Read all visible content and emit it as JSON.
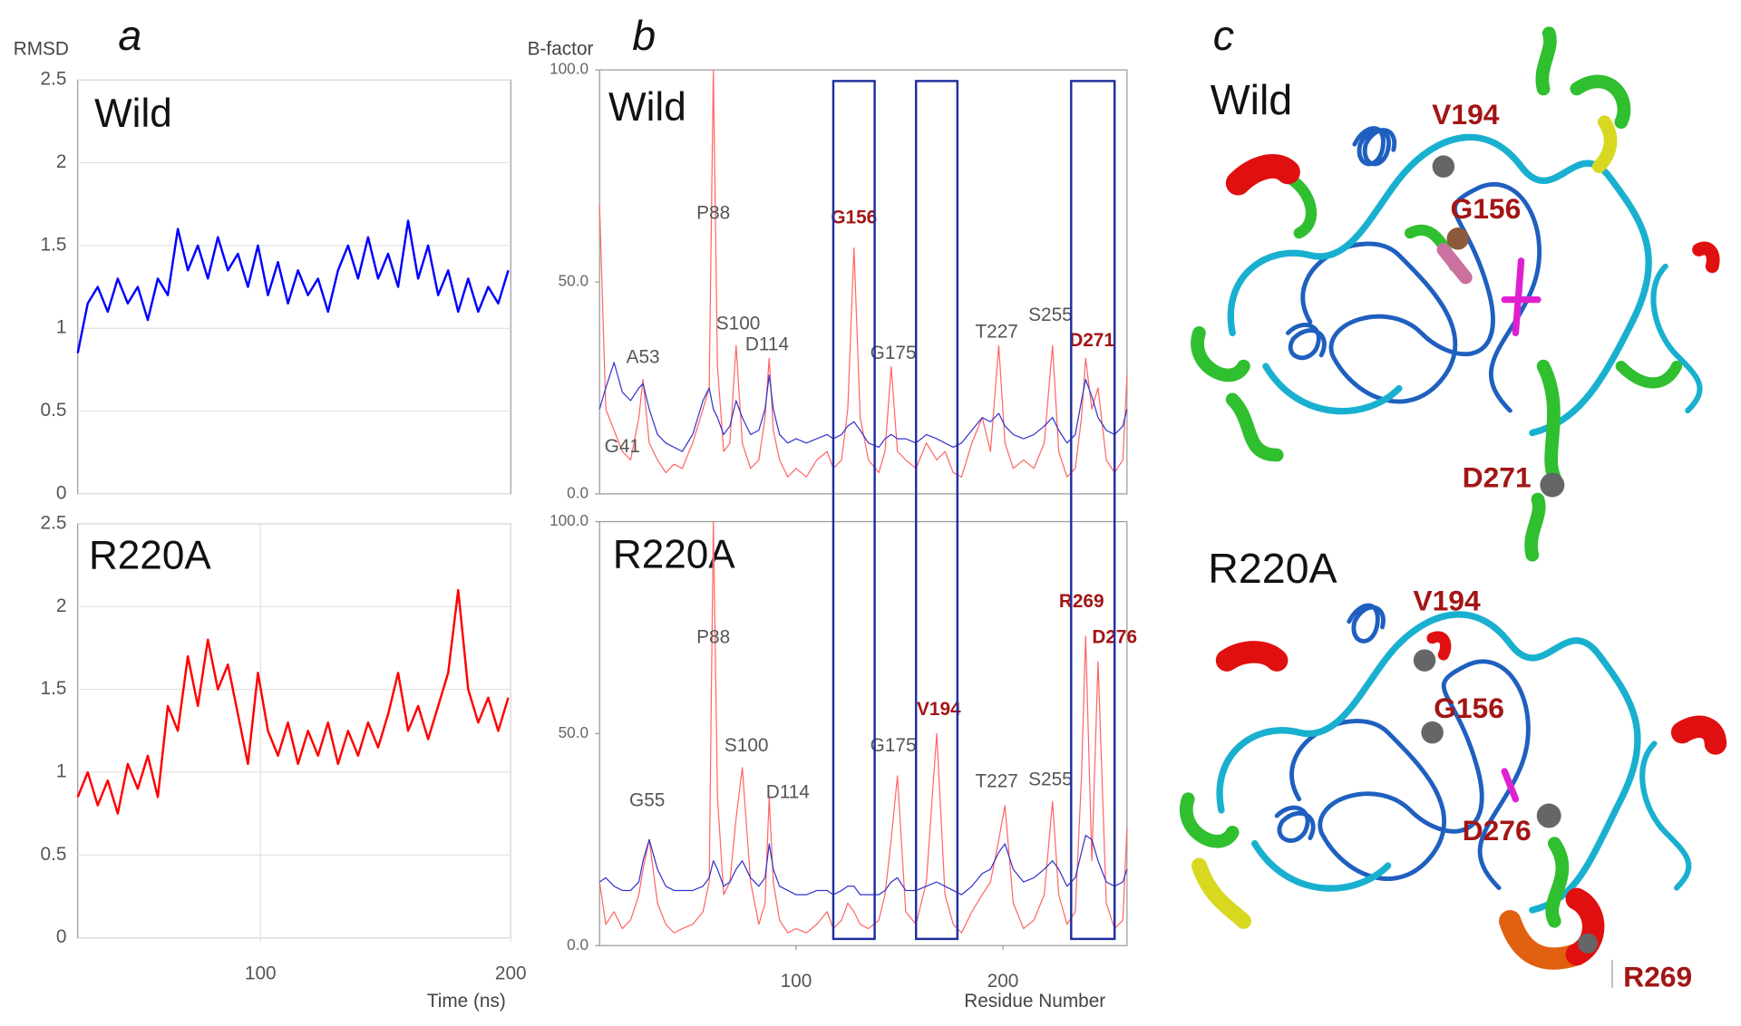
{
  "panel_labels": [
    "a",
    "b",
    "c"
  ],
  "chart_data": [
    {
      "type": "line",
      "title": "Wild",
      "ylabel": "RMSD",
      "ylim": [
        0,
        2.5
      ],
      "yticks": [
        0,
        0.5,
        1,
        1.5,
        2,
        2.5
      ],
      "xlim": [
        27,
        200
      ],
      "grid": true,
      "x": [
        27,
        31,
        35,
        39,
        43,
        47,
        51,
        55,
        59,
        63,
        67,
        71,
        75,
        79,
        83,
        87,
        91,
        95,
        99,
        103,
        107,
        111,
        115,
        119,
        123,
        127,
        131,
        135,
        139,
        143,
        147,
        151,
        155,
        159,
        163,
        167,
        171,
        175,
        179,
        183,
        187,
        191,
        195,
        199
      ],
      "series": [
        {
          "color": "#0000ff",
          "values": [
            0.85,
            1.15,
            1.25,
            1.1,
            1.3,
            1.15,
            1.25,
            1.05,
            1.3,
            1.2,
            1.6,
            1.35,
            1.5,
            1.3,
            1.55,
            1.35,
            1.45,
            1.25,
            1.5,
            1.2,
            1.4,
            1.15,
            1.35,
            1.2,
            1.3,
            1.1,
            1.35,
            1.5,
            1.3,
            1.55,
            1.3,
            1.45,
            1.25,
            1.65,
            1.3,
            1.5,
            1.2,
            1.35,
            1.1,
            1.3,
            1.1,
            1.25,
            1.15,
            1.35
          ]
        }
      ]
    },
    {
      "type": "line",
      "title": "R220A",
      "xlabel": "Time (ns)",
      "ylim": [
        0,
        2.5
      ],
      "yticks": [
        0,
        0.5,
        1,
        1.5,
        2,
        2.5
      ],
      "xlim": [
        27,
        200
      ],
      "xticks": [
        100,
        200
      ],
      "grid": true,
      "x": [
        27,
        31,
        35,
        39,
        43,
        47,
        51,
        55,
        59,
        63,
        67,
        71,
        75,
        79,
        83,
        87,
        91,
        95,
        99,
        103,
        107,
        111,
        115,
        119,
        123,
        127,
        131,
        135,
        139,
        143,
        147,
        151,
        155,
        159,
        163,
        167,
        171,
        175,
        179,
        183,
        187,
        191,
        195,
        199
      ],
      "series": [
        {
          "color": "#ff0000",
          "values": [
            0.85,
            1.0,
            0.8,
            0.95,
            0.75,
            1.05,
            0.9,
            1.1,
            0.85,
            1.4,
            1.25,
            1.7,
            1.4,
            1.8,
            1.5,
            1.65,
            1.35,
            1.05,
            1.6,
            1.25,
            1.1,
            1.3,
            1.05,
            1.25,
            1.1,
            1.3,
            1.05,
            1.25,
            1.1,
            1.3,
            1.15,
            1.35,
            1.6,
            1.25,
            1.4,
            1.2,
            1.4,
            1.6,
            2.1,
            1.5,
            1.3,
            1.45,
            1.25,
            1.45
          ]
        }
      ]
    },
    {
      "type": "line",
      "title": "Wild",
      "ylabel": "B-factor",
      "ylim": [
        0,
        100
      ],
      "yticks": [
        {
          "value": 0,
          "label": "0.0"
        },
        {
          "value": 50,
          "label": "50.0"
        },
        {
          "value": 100,
          "label": "100.0"
        }
      ],
      "xlim": [
        5,
        260
      ],
      "grid": false,
      "x": [
        5,
        8,
        12,
        16,
        20,
        24,
        26,
        29,
        33,
        37,
        41,
        45,
        50,
        55,
        58,
        60,
        62,
        65,
        68,
        71,
        74,
        78,
        82,
        85,
        87,
        89,
        92,
        96,
        100,
        105,
        110,
        115,
        118,
        122,
        125,
        128,
        131,
        135,
        140,
        143,
        146,
        149,
        153,
        158,
        163,
        168,
        172,
        176,
        180,
        185,
        190,
        194,
        198,
        201,
        205,
        210,
        215,
        220,
        224,
        227,
        231,
        235,
        238,
        240,
        243,
        246,
        250,
        254,
        258,
        260
      ],
      "series": [
        {
          "color": "#ff6666",
          "values": [
            68,
            20,
            15,
            10,
            8,
            18,
            27,
            12,
            8,
            5,
            7,
            6,
            12,
            20,
            25,
            100,
            30,
            10,
            12,
            35,
            12,
            6,
            8,
            18,
            32,
            15,
            8,
            4,
            6,
            4,
            8,
            10,
            6,
            8,
            20,
            58,
            18,
            8,
            5,
            10,
            30,
            10,
            8,
            6,
            12,
            8,
            10,
            5,
            4,
            12,
            18,
            10,
            35,
            12,
            6,
            8,
            6,
            12,
            35,
            10,
            4,
            6,
            18,
            32,
            20,
            25,
            8,
            5,
            8,
            28
          ]
        },
        {
          "color": "#3333cc",
          "values": [
            20,
            25,
            31,
            24,
            22,
            25,
            26,
            20,
            14,
            12,
            11,
            10,
            14,
            22,
            25,
            20,
            18,
            14,
            16,
            22,
            18,
            14,
            15,
            20,
            28,
            20,
            14,
            12,
            13,
            12,
            13,
            14,
            13,
            14,
            16,
            17,
            15,
            12,
            11,
            13,
            14,
            13,
            13,
            12,
            14,
            13,
            12,
            11,
            12,
            15,
            18,
            17,
            19,
            16,
            14,
            13,
            14,
            16,
            18,
            15,
            12,
            14,
            22,
            27,
            23,
            18,
            15,
            14,
            16,
            20
          ]
        }
      ],
      "annotations": [
        {
          "text": "A53",
          "x": 26,
          "y": 32,
          "color": "#555555"
        },
        {
          "text": "G41",
          "x": 16,
          "y": 11,
          "color": "#555555"
        },
        {
          "text": "P88",
          "x": 60,
          "y": 66,
          "color": "#555555"
        },
        {
          "text": "S100",
          "x": 72,
          "y": 40,
          "color": "#555555"
        },
        {
          "text": "D114",
          "x": 86,
          "y": 35,
          "color": "#555555"
        },
        {
          "text": "G156",
          "x": 128,
          "y": 65,
          "color": "#a31515"
        },
        {
          "text": "G175",
          "x": 147,
          "y": 33,
          "color": "#555555"
        },
        {
          "text": "T227",
          "x": 197,
          "y": 38,
          "color": "#555555"
        },
        {
          "text": "S255",
          "x": 223,
          "y": 42,
          "color": "#555555"
        },
        {
          "text": "D271",
          "x": 243,
          "y": 36,
          "color": "#a31515"
        }
      ]
    },
    {
      "type": "line",
      "title": "R220A",
      "xlabel": "Residue Number",
      "ylim": [
        0,
        100
      ],
      "yticks": [
        {
          "value": 0,
          "label": "0.0"
        },
        {
          "value": 50,
          "label": "50.0"
        },
        {
          "value": 100,
          "label": "100.0"
        }
      ],
      "xlim": [
        5,
        260
      ],
      "xticks": [
        100,
        200
      ],
      "grid": false,
      "x": [
        5,
        8,
        12,
        16,
        20,
        24,
        26,
        29,
        33,
        37,
        41,
        45,
        50,
        55,
        58,
        60,
        62,
        65,
        68,
        71,
        74,
        78,
        82,
        85,
        87,
        89,
        92,
        96,
        100,
        105,
        110,
        115,
        118,
        122,
        125,
        128,
        131,
        135,
        140,
        143,
        146,
        149,
        153,
        158,
        163,
        168,
        172,
        176,
        180,
        185,
        190,
        194,
        198,
        201,
        205,
        210,
        215,
        220,
        224,
        227,
        231,
        235,
        238,
        240,
        243,
        246,
        250,
        254,
        258,
        260
      ],
      "series": [
        {
          "color": "#ff6666",
          "values": [
            15,
            5,
            8,
            4,
            6,
            12,
            18,
            25,
            10,
            5,
            3,
            4,
            5,
            8,
            15,
            100,
            35,
            12,
            15,
            30,
            42,
            15,
            5,
            10,
            35,
            15,
            6,
            3,
            4,
            3,
            5,
            8,
            4,
            6,
            10,
            8,
            5,
            4,
            6,
            12,
            25,
            40,
            8,
            5,
            15,
            50,
            12,
            5,
            3,
            8,
            12,
            15,
            25,
            33,
            10,
            4,
            6,
            12,
            34,
            12,
            5,
            8,
            40,
            73,
            20,
            67,
            10,
            4,
            6,
            28
          ]
        },
        {
          "color": "#3333cc",
          "values": [
            15,
            16,
            14,
            13,
            13,
            15,
            20,
            25,
            18,
            14,
            13,
            13,
            13,
            14,
            16,
            20,
            18,
            14,
            15,
            18,
            20,
            16,
            14,
            16,
            24,
            18,
            14,
            13,
            12,
            12,
            13,
            13,
            12,
            13,
            14,
            14,
            12,
            12,
            12,
            13,
            15,
            16,
            13,
            13,
            14,
            15,
            14,
            13,
            12,
            14,
            17,
            18,
            22,
            24,
            18,
            15,
            16,
            18,
            20,
            18,
            14,
            16,
            22,
            26,
            25,
            20,
            15,
            14,
            15,
            18
          ]
        }
      ],
      "annotations": [
        {
          "text": "G55",
          "x": 28,
          "y": 34,
          "color": "#555555"
        },
        {
          "text": "P88",
          "x": 60,
          "y": 72.5,
          "color": "#555555"
        },
        {
          "text": "S100",
          "x": 76,
          "y": 47,
          "color": "#555555"
        },
        {
          "text": "D114",
          "x": 96,
          "y": 36,
          "color": "#555555"
        },
        {
          "text": "G175",
          "x": 147,
          "y": 47,
          "color": "#555555"
        },
        {
          "text": "V194",
          "x": 169,
          "y": 55.5,
          "color": "#a31515"
        },
        {
          "text": "T227",
          "x": 197,
          "y": 38.5,
          "color": "#555555"
        },
        {
          "text": "S255",
          "x": 223,
          "y": 39,
          "color": "#555555"
        },
        {
          "text": "R269",
          "x": 238,
          "y": 81,
          "color": "#a31515"
        },
        {
          "text": "D276",
          "x": 254,
          "y": 72.5,
          "color": "#a31515"
        }
      ],
      "highlight_ranges": [
        [
          118,
          138
        ],
        [
          158,
          178
        ],
        [
          233,
          254
        ]
      ],
      "highlight_color": "#1f2f9f"
    }
  ],
  "structures": [
    {
      "title": "Wild",
      "residues": [
        "V194",
        "G156",
        "D271"
      ]
    },
    {
      "title": "R220A",
      "residues": [
        "V194",
        "G156",
        "D276",
        "R269"
      ]
    }
  ]
}
